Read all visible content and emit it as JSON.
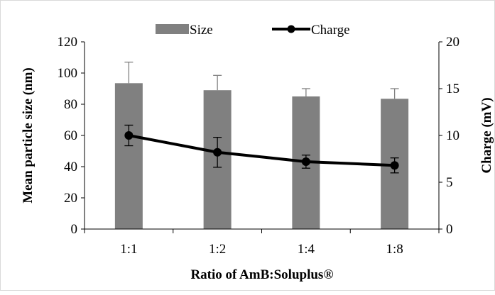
{
  "chart_data": {
    "type": "bar+line",
    "title": "",
    "categories": [
      "1:1",
      "1:2",
      "1:4",
      "1:8"
    ],
    "xlabel": "Ratio of AmB:Soluplus®",
    "ylabel_left": "Mean particle size (nm)",
    "ylabel_right": "Charge (mV)",
    "ylim_left": [
      0,
      120
    ],
    "yticks_left": [
      0,
      20,
      40,
      60,
      80,
      100,
      120
    ],
    "ylim_right": [
      0,
      20
    ],
    "yticks_right": [
      0,
      5,
      10,
      15,
      20
    ],
    "legend_position": "top",
    "grid": false,
    "series": [
      {
        "name": "Size",
        "type": "bar",
        "axis": "left",
        "color": "#808080",
        "values": [
          93.5,
          89,
          85,
          83.5
        ],
        "error_plus": [
          13.5,
          9.5,
          5,
          6.5
        ]
      },
      {
        "name": "Charge",
        "type": "line",
        "axis": "right",
        "color": "#000000",
        "values": [
          10,
          8.2,
          7.2,
          6.8
        ],
        "error": [
          1.1,
          1.6,
          0.7,
          0.8
        ]
      }
    ]
  }
}
